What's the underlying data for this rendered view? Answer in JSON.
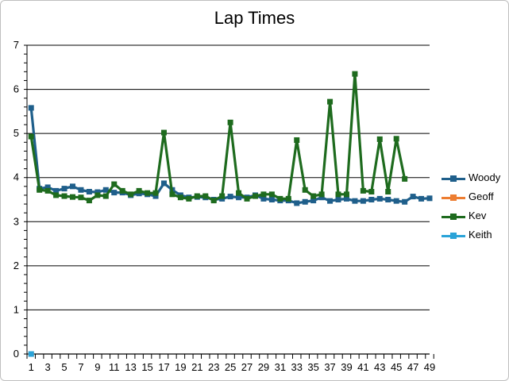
{
  "chart_data": {
    "type": "line",
    "title": "Lap Times",
    "xlabel": "",
    "ylabel": "",
    "ylim": [
      0,
      7
    ],
    "y_ticks": [
      "0",
      "1",
      "2",
      "3",
      "4",
      "5",
      "6",
      "7"
    ],
    "x_tick_labels": [
      "1",
      "3",
      "5",
      "7",
      "9",
      "11",
      "13",
      "15",
      "17",
      "19",
      "21",
      "23",
      "25",
      "27",
      "29",
      "31",
      "33",
      "35",
      "37",
      "39",
      "41",
      "43",
      "45",
      "47",
      "49"
    ],
    "x_max": 49,
    "grid": "horizontal",
    "legend_position": "right",
    "series": [
      {
        "name": "Woody",
        "color": "#1f5f8b",
        "x": [
          1,
          2,
          3,
          4,
          5,
          6,
          7,
          8,
          9,
          10,
          11,
          12,
          13,
          14,
          15,
          16,
          17,
          18,
          19,
          20,
          21,
          22,
          23,
          24,
          25,
          26,
          27,
          28,
          29,
          30,
          31,
          32,
          33,
          34,
          35,
          36,
          37,
          38,
          39,
          40,
          41,
          42,
          43,
          44,
          45,
          46,
          47,
          48,
          49
        ],
        "y": [
          5.58,
          3.75,
          3.78,
          3.7,
          3.75,
          3.8,
          3.72,
          3.68,
          3.67,
          3.72,
          3.66,
          3.66,
          3.6,
          3.64,
          3.62,
          3.58,
          3.87,
          3.72,
          3.6,
          3.55,
          3.56,
          3.55,
          3.5,
          3.52,
          3.57,
          3.55,
          3.55,
          3.6,
          3.52,
          3.5,
          3.48,
          3.48,
          3.42,
          3.45,
          3.48,
          3.55,
          3.47,
          3.5,
          3.52,
          3.47,
          3.47,
          3.5,
          3.52,
          3.5,
          3.47,
          3.45,
          3.57,
          3.52,
          3.53
        ]
      },
      {
        "name": "Geoff",
        "color": "#ed7d31",
        "x": [
          1
        ],
        "y": [
          0
        ]
      },
      {
        "name": "Kev",
        "color": "#1e6b1e",
        "x": [
          1,
          2,
          3,
          4,
          5,
          6,
          7,
          8,
          9,
          10,
          11,
          12,
          13,
          14,
          15,
          16,
          17,
          18,
          19,
          20,
          21,
          22,
          23,
          24,
          25,
          26,
          27,
          28,
          29,
          30,
          31,
          32,
          33,
          34,
          35,
          36,
          37,
          38,
          39,
          40,
          41,
          42,
          43,
          44,
          45,
          46
        ],
        "y": [
          4.93,
          3.72,
          3.7,
          3.6,
          3.58,
          3.56,
          3.55,
          3.48,
          3.6,
          3.58,
          3.85,
          3.7,
          3.62,
          3.7,
          3.65,
          3.65,
          5.02,
          3.62,
          3.55,
          3.52,
          3.58,
          3.58,
          3.48,
          3.58,
          5.25,
          3.65,
          3.52,
          3.58,
          3.62,
          3.62,
          3.52,
          3.52,
          4.85,
          3.72,
          3.58,
          3.62,
          5.72,
          3.62,
          3.62,
          6.35,
          3.7,
          3.68,
          4.87,
          3.68,
          4.88,
          3.97
        ]
      },
      {
        "name": "Keith",
        "color": "#2aa3d8",
        "x": [
          1
        ],
        "y": [
          0
        ]
      }
    ]
  }
}
